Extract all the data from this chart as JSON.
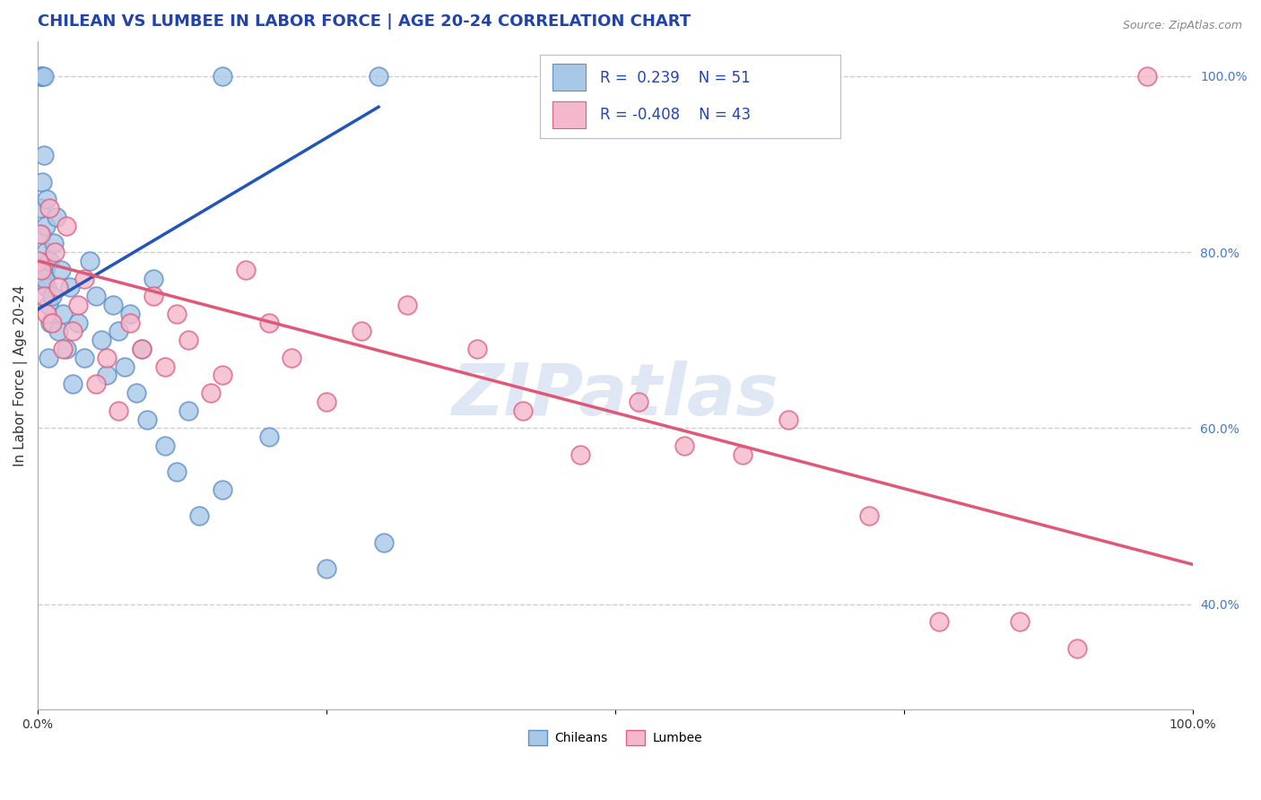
{
  "title": "CHILEAN VS LUMBEE IN LABOR FORCE | AGE 20-24 CORRELATION CHART",
  "source_text": "Source: ZipAtlas.com",
  "ylabel": "In Labor Force | Age 20-24",
  "xlim": [
    0.0,
    1.0
  ],
  "ylim": [
    0.28,
    1.04
  ],
  "right_yticks": [
    0.4,
    0.6,
    0.8,
    1.0
  ],
  "right_yticklabels": [
    "40.0%",
    "60.0%",
    "80.0%",
    "100.0%"
  ],
  "xticks": [
    0.0,
    0.25,
    0.5,
    0.75,
    1.0
  ],
  "xticklabels_show": [
    "0.0%",
    "",
    "",
    "",
    "100.0%"
  ],
  "chilean_color": "#a8c8e8",
  "lumbee_color": "#f4b8cc",
  "chilean_edge": "#6090c8",
  "lumbee_edge": "#e06080",
  "blue_line_color": "#2255bb",
  "pink_line_color": "#e05878",
  "grid_color": "#ccccdd",
  "background_color": "#ffffff",
  "watermark_text": "ZIPatlas",
  "chilean_pts_x": [
    0.002,
    0.003,
    0.004,
    0.005,
    0.006,
    0.007,
    0.008,
    0.009,
    0.01,
    0.011,
    0.002,
    0.003,
    0.004,
    0.005,
    0.006,
    0.007,
    0.008,
    0.009,
    0.012,
    0.014,
    0.016,
    0.018,
    0.02,
    0.022,
    0.025,
    0.028,
    0.03,
    0.035,
    0.04,
    0.045,
    0.05,
    0.055,
    0.06,
    0.065,
    0.07,
    0.075,
    0.08,
    0.085,
    0.09,
    0.095,
    0.1,
    0.11,
    0.12,
    0.13,
    0.14,
    0.16,
    0.2,
    0.25,
    0.3,
    0.16,
    0.295
  ],
  "chilean_pts_y": [
    1.0,
    1.0,
    1.0,
    1.0,
    0.78,
    0.8,
    0.76,
    0.74,
    0.79,
    0.72,
    0.85,
    0.82,
    0.88,
    0.91,
    0.77,
    0.83,
    0.86,
    0.68,
    0.75,
    0.81,
    0.84,
    0.71,
    0.78,
    0.73,
    0.69,
    0.76,
    0.65,
    0.72,
    0.68,
    0.79,
    0.75,
    0.7,
    0.66,
    0.74,
    0.71,
    0.67,
    0.73,
    0.64,
    0.69,
    0.61,
    0.77,
    0.58,
    0.55,
    0.62,
    0.5,
    0.53,
    0.59,
    0.44,
    0.47,
    1.0,
    1.0
  ],
  "lumbee_pts_x": [
    0.001,
    0.002,
    0.003,
    0.005,
    0.008,
    0.01,
    0.012,
    0.015,
    0.018,
    0.022,
    0.025,
    0.03,
    0.035,
    0.04,
    0.05,
    0.06,
    0.07,
    0.08,
    0.09,
    0.1,
    0.11,
    0.12,
    0.13,
    0.15,
    0.16,
    0.18,
    0.2,
    0.22,
    0.25,
    0.28,
    0.32,
    0.38,
    0.42,
    0.47,
    0.52,
    0.56,
    0.61,
    0.65,
    0.72,
    0.78,
    0.85,
    0.9,
    0.96
  ],
  "lumbee_pts_y": [
    0.79,
    0.82,
    0.78,
    0.75,
    0.73,
    0.85,
    0.72,
    0.8,
    0.76,
    0.69,
    0.83,
    0.71,
    0.74,
    0.77,
    0.65,
    0.68,
    0.62,
    0.72,
    0.69,
    0.75,
    0.67,
    0.73,
    0.7,
    0.64,
    0.66,
    0.78,
    0.72,
    0.68,
    0.63,
    0.71,
    0.74,
    0.69,
    0.62,
    0.57,
    0.63,
    0.58,
    0.57,
    0.61,
    0.5,
    0.38,
    0.38,
    0.35,
    1.0
  ],
  "blue_line_x0": 0.0,
  "blue_line_y0": 0.735,
  "blue_line_x1": 0.295,
  "blue_line_y1": 0.965,
  "pink_line_x0": 0.0,
  "pink_line_y0": 0.79,
  "pink_line_x1": 1.0,
  "pink_line_y1": 0.445,
  "title_fontsize": 13,
  "axis_label_fontsize": 11,
  "tick_fontsize": 10,
  "source_fontsize": 9,
  "legend_fontsize": 12
}
